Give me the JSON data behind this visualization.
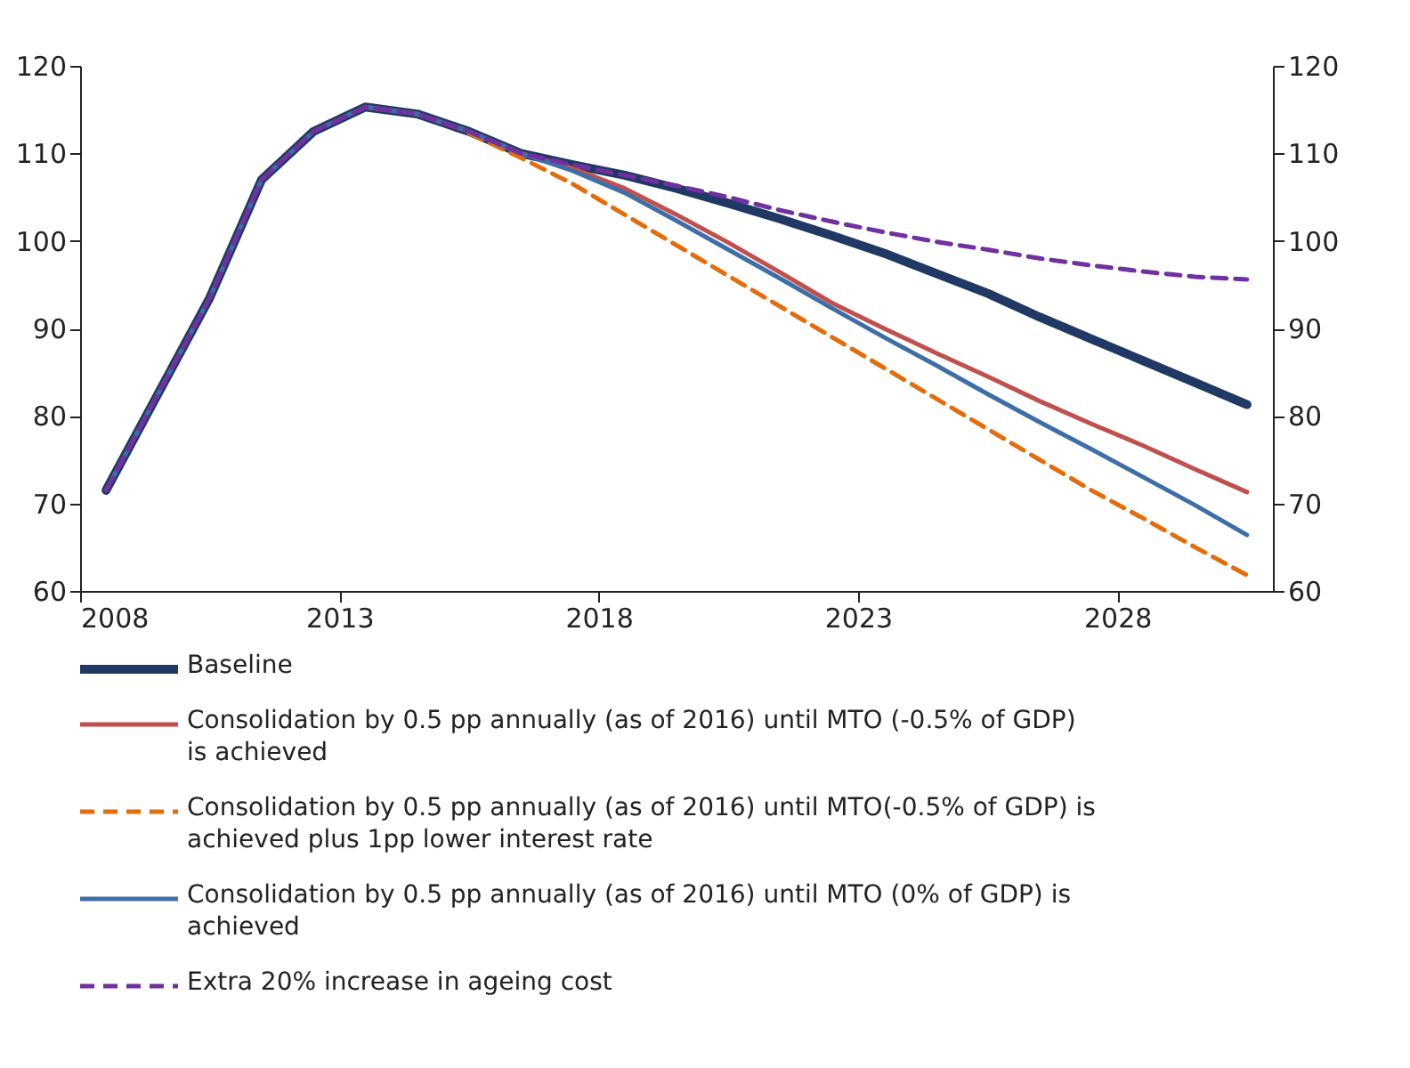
{
  "chart_data": {
    "type": "line",
    "x": [
      2008.5,
      2009.5,
      2010.5,
      2011.5,
      2012.5,
      2013.5,
      2014.5,
      2015.5,
      2016.5,
      2017.5,
      2018.5,
      2019.5,
      2020.5,
      2021.5,
      2022.5,
      2023.5,
      2024.5,
      2025.5,
      2026.5,
      2027.5,
      2028.5,
      2029.5,
      2030.5
    ],
    "xlim": [
      2008,
      2031
    ],
    "xticks": [
      2008,
      2013,
      2018,
      2023,
      2028
    ],
    "ylim": [
      60,
      120
    ],
    "yticks": [
      60,
      70,
      80,
      90,
      100,
      110,
      120
    ],
    "y2lim": [
      60,
      120
    ],
    "y2ticks": [
      60,
      70,
      80,
      90,
      100,
      110,
      120
    ],
    "grid": false,
    "legend": "bottom",
    "marker": "none",
    "series": [
      {
        "name": "Baseline",
        "color": "#1f3864",
        "line_style": "solid",
        "values": [
          71.5,
          82.5,
          93.5,
          107,
          112.5,
          115.3,
          114.5,
          112.5,
          110,
          108.7,
          107.5,
          106,
          104.3,
          102.5,
          100.6,
          98.6,
          96.3,
          94,
          91.3,
          88.8,
          86.3,
          83.8,
          81.3
        ]
      },
      {
        "name": "Consolidation by 0.5 pp annually (as of 2016) until MTO (-0.5% of GDP) is achieved",
        "color": "#c0504d",
        "line_style": "solid",
        "values": [
          null,
          null,
          null,
          null,
          null,
          115.3,
          114.5,
          112.5,
          110,
          108.3,
          106,
          103,
          99.8,
          96.4,
          92.9,
          90,
          87.2,
          84.5,
          81.7,
          79.1,
          76.6,
          73.9,
          71.3
        ]
      },
      {
        "name": "Consolidation by 0.5 pp annually (as of 2016) until MTO(-0.5% of GDP) is achieved plus 1pp lower interest rate",
        "color": "#e46c0a",
        "line_style": "dashed",
        "values": [
          null,
          null,
          null,
          null,
          null,
          null,
          null,
          112.3,
          109.5,
          106.5,
          103,
          99.5,
          96,
          92.5,
          89,
          85.5,
          82,
          78.5,
          75,
          71.5,
          68.3,
          65,
          61.8
        ]
      },
      {
        "name": "Consolidation by 0.5 pp annually (as of 2016) until MTO (0% of GDP) is achieved",
        "color": "#3e6ea8",
        "line_style": "solid",
        "values": [
          71.5,
          82.5,
          93.5,
          107,
          112.5,
          115.3,
          114.5,
          112.5,
          110,
          108,
          105.5,
          102.3,
          99,
          95.7,
          92.3,
          89,
          85.8,
          82.5,
          79.3,
          76.2,
          73,
          69.8,
          66.4
        ]
      },
      {
        "name": "Extra 20% increase in ageing cost",
        "color": "#7030a0",
        "line_style": "dashed",
        "values": [
          71.5,
          82.5,
          93.5,
          107,
          112.5,
          115.3,
          114.5,
          112.5,
          110,
          108.7,
          107.5,
          106.3,
          105,
          103.5,
          102.2,
          101,
          99.9,
          99,
          98,
          97.2,
          96.5,
          95.9,
          95.6
        ]
      }
    ]
  }
}
